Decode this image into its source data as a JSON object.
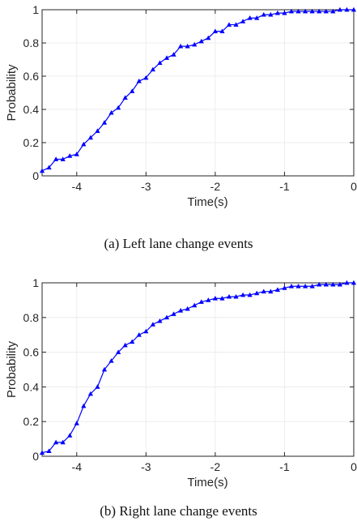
{
  "captions": [
    "(a) Left lane change events",
    "(b) Right lane change events"
  ],
  "chart_data": [
    {
      "type": "line",
      "title": "",
      "xlabel": "Time(s)",
      "ylabel": "Probability",
      "xlim": [
        -4.5,
        0
      ],
      "ylim": [
        0,
        1
      ],
      "xticks": [
        -4,
        -3,
        -2,
        -1,
        0
      ],
      "yticks": [
        0,
        0.2,
        0.4,
        0.6,
        0.8,
        1
      ],
      "grid": true,
      "marker": "triangle",
      "color": "#0000ff",
      "x": [
        -4.5,
        -4.4,
        -4.3,
        -4.2,
        -4.1,
        -4.0,
        -3.9,
        -3.8,
        -3.7,
        -3.6,
        -3.5,
        -3.4,
        -3.3,
        -3.2,
        -3.1,
        -3.0,
        -2.9,
        -2.8,
        -2.7,
        -2.6,
        -2.5,
        -2.4,
        -2.3,
        -2.2,
        -2.1,
        -2.0,
        -1.9,
        -1.8,
        -1.7,
        -1.6,
        -1.5,
        -1.4,
        -1.3,
        -1.2,
        -1.1,
        -1.0,
        -0.9,
        -0.8,
        -0.7,
        -0.6,
        -0.5,
        -0.4,
        -0.3,
        -0.2,
        -0.1,
        0.0
      ],
      "y": [
        0.03,
        0.05,
        0.1,
        0.1,
        0.12,
        0.13,
        0.19,
        0.23,
        0.27,
        0.32,
        0.38,
        0.41,
        0.47,
        0.51,
        0.57,
        0.59,
        0.64,
        0.68,
        0.71,
        0.73,
        0.78,
        0.78,
        0.79,
        0.81,
        0.83,
        0.87,
        0.87,
        0.91,
        0.91,
        0.93,
        0.95,
        0.95,
        0.97,
        0.97,
        0.98,
        0.98,
        0.99,
        0.99,
        0.99,
        0.99,
        0.99,
        0.99,
        0.99,
        1.0,
        1.0,
        1.0
      ]
    },
    {
      "type": "line",
      "title": "",
      "xlabel": "Time(s)",
      "ylabel": "Probability",
      "xlim": [
        -4.5,
        0
      ],
      "ylim": [
        0,
        1
      ],
      "xticks": [
        -4,
        -3,
        -2,
        -1,
        0
      ],
      "yticks": [
        0,
        0.2,
        0.4,
        0.6,
        0.8,
        1
      ],
      "grid": true,
      "marker": "triangle",
      "color": "#0000ff",
      "x": [
        -4.5,
        -4.4,
        -4.3,
        -4.2,
        -4.1,
        -4.0,
        -3.9,
        -3.8,
        -3.7,
        -3.6,
        -3.5,
        -3.4,
        -3.3,
        -3.2,
        -3.1,
        -3.0,
        -2.9,
        -2.8,
        -2.7,
        -2.6,
        -2.5,
        -2.4,
        -2.3,
        -2.2,
        -2.1,
        -2.0,
        -1.9,
        -1.8,
        -1.7,
        -1.6,
        -1.5,
        -1.4,
        -1.3,
        -1.2,
        -1.1,
        -1.0,
        -0.9,
        -0.8,
        -0.7,
        -0.6,
        -0.5,
        -0.4,
        -0.3,
        -0.2,
        -0.1,
        0.0
      ],
      "y": [
        0.02,
        0.03,
        0.08,
        0.08,
        0.12,
        0.19,
        0.29,
        0.36,
        0.4,
        0.5,
        0.55,
        0.6,
        0.64,
        0.66,
        0.7,
        0.72,
        0.76,
        0.78,
        0.8,
        0.82,
        0.84,
        0.85,
        0.87,
        0.89,
        0.9,
        0.91,
        0.91,
        0.92,
        0.92,
        0.93,
        0.93,
        0.94,
        0.95,
        0.95,
        0.96,
        0.97,
        0.98,
        0.98,
        0.98,
        0.98,
        0.99,
        0.99,
        0.99,
        0.99,
        1.0,
        1.0
      ]
    }
  ]
}
